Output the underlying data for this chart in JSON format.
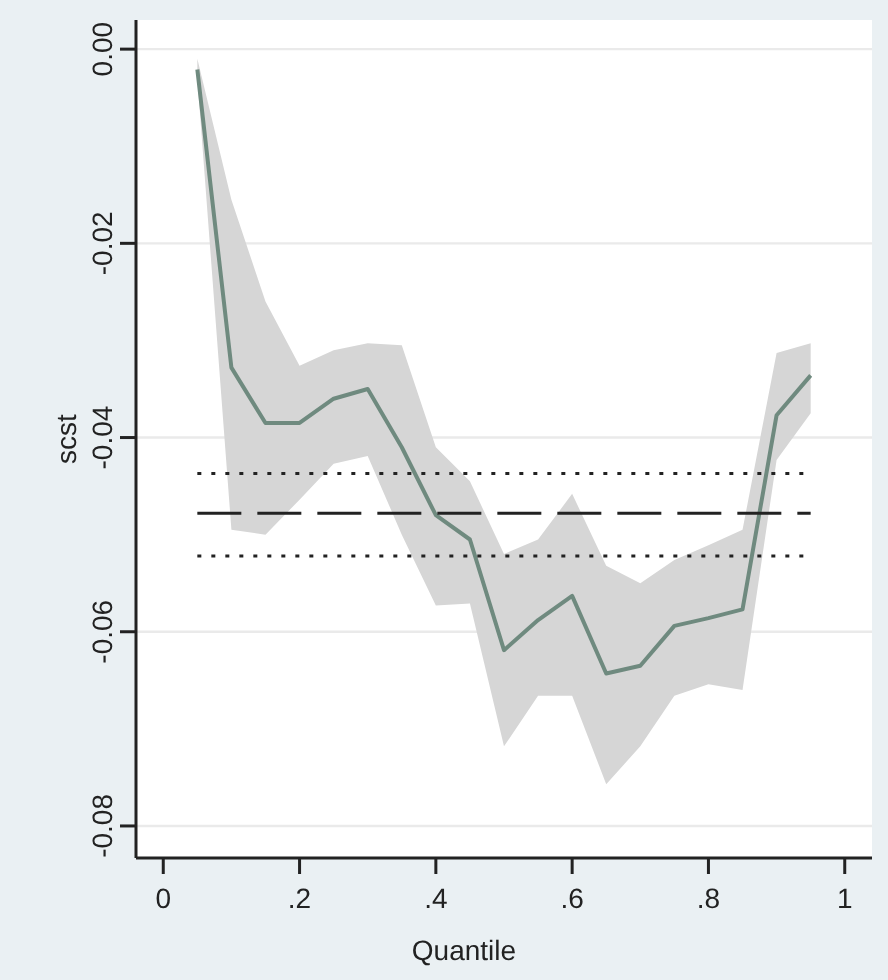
{
  "chart_data": {
    "type": "line",
    "xlabel": "Quantile",
    "ylabel": "scst",
    "x": [
      0.05,
      0.1,
      0.15,
      0.2,
      0.25,
      0.3,
      0.35,
      0.4,
      0.45,
      0.5,
      0.55,
      0.6,
      0.65,
      0.7,
      0.75,
      0.8,
      0.85,
      0.9,
      0.95
    ],
    "series": [
      {
        "color": "#6f8a7f",
        "values": [
          -0.0021,
          -0.0328,
          -0.0385,
          -0.0385,
          -0.036,
          -0.035,
          -0.041,
          -0.048,
          -0.0505,
          -0.0619,
          -0.0588,
          -0.0563,
          -0.0643,
          -0.0635,
          -0.0594,
          -0.0586,
          -0.0577,
          -0.0377,
          -0.0336
        ],
        "lower": [
          -0.003,
          -0.0495,
          -0.05,
          -0.0464,
          -0.0427,
          -0.0419,
          -0.05,
          -0.0573,
          -0.0571,
          -0.0718,
          -0.0666,
          -0.0666,
          -0.0757,
          -0.0718,
          -0.0666,
          -0.0654,
          -0.066,
          -0.0423,
          -0.0375
        ],
        "upper": [
          -0.001,
          -0.0155,
          -0.026,
          -0.0326,
          -0.031,
          -0.0303,
          -0.0305,
          -0.041,
          -0.0445,
          -0.052,
          -0.0505,
          -0.0458,
          -0.0532,
          -0.055,
          -0.0526,
          -0.0511,
          -0.0495,
          -0.0313,
          -0.0303
        ]
      }
    ],
    "ref_lines": [
      {
        "axis": "y",
        "value": -0.0437,
        "line_style": "dotted",
        "color": "#222222"
      },
      {
        "axis": "y",
        "value": -0.0478,
        "line_style": "dashed",
        "color": "#222222"
      },
      {
        "axis": "y",
        "value": -0.0522,
        "line_style": "dotted",
        "color": "#222222"
      }
    ],
    "xlim": [
      -0.04,
      1.04
    ],
    "ylim": [
      -0.0833,
      0.003
    ],
    "xticks": [
      {
        "value": 0,
        "label": "0"
      },
      {
        "value": 0.2,
        "label": ".2"
      },
      {
        "value": 0.4,
        "label": ".4"
      },
      {
        "value": 0.6,
        "label": ".6"
      },
      {
        "value": 0.8,
        "label": ".8"
      },
      {
        "value": 1,
        "label": "1"
      }
    ],
    "yticks": [
      {
        "value": 0,
        "label": "0.00"
      },
      {
        "value": -0.02,
        "label": "-0.02"
      },
      {
        "value": -0.04,
        "label": "-0.04"
      },
      {
        "value": -0.06,
        "label": "-0.06"
      },
      {
        "value": -0.08,
        "label": "-0.08"
      }
    ],
    "grid": "y",
    "line_style": "solid",
    "marker": "none"
  }
}
